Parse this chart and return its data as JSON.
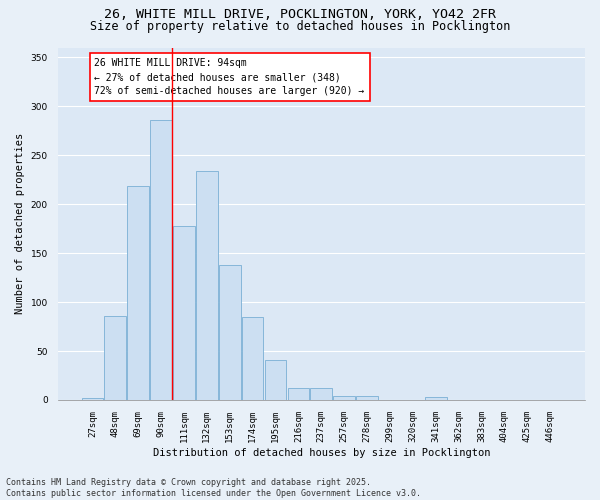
{
  "title_line1": "26, WHITE MILL DRIVE, POCKLINGTON, YORK, YO42 2FR",
  "title_line2": "Size of property relative to detached houses in Pocklington",
  "xlabel": "Distribution of detached houses by size in Pocklington",
  "ylabel": "Number of detached properties",
  "bar_color": "#ccdff2",
  "bar_edge_color": "#7aafd4",
  "background_color": "#dce8f5",
  "fig_background": "#e8f0f8",
  "grid_color": "#ffffff",
  "categories": [
    "27sqm",
    "48sqm",
    "69sqm",
    "90sqm",
    "111sqm",
    "132sqm",
    "153sqm",
    "174sqm",
    "195sqm",
    "216sqm",
    "237sqm",
    "257sqm",
    "278sqm",
    "299sqm",
    "320sqm",
    "341sqm",
    "362sqm",
    "383sqm",
    "404sqm",
    "425sqm",
    "446sqm"
  ],
  "values": [
    2,
    86,
    219,
    286,
    178,
    234,
    138,
    85,
    41,
    12,
    12,
    4,
    4,
    0,
    0,
    3,
    0,
    0,
    0,
    0,
    0
  ],
  "ylim": [
    0,
    360
  ],
  "yticks": [
    0,
    50,
    100,
    150,
    200,
    250,
    300,
    350
  ],
  "property_bin_index": 3,
  "red_line_x": 3.47,
  "annotation_text": "26 WHITE MILL DRIVE: 94sqm\n← 27% of detached houses are smaller (348)\n72% of semi-detached houses are larger (920) →",
  "footer_line1": "Contains HM Land Registry data © Crown copyright and database right 2025.",
  "footer_line2": "Contains public sector information licensed under the Open Government Licence v3.0.",
  "title_fontsize": 9.5,
  "subtitle_fontsize": 8.5,
  "axis_label_fontsize": 7.5,
  "tick_fontsize": 6.5,
  "annotation_fontsize": 7,
  "footer_fontsize": 6
}
